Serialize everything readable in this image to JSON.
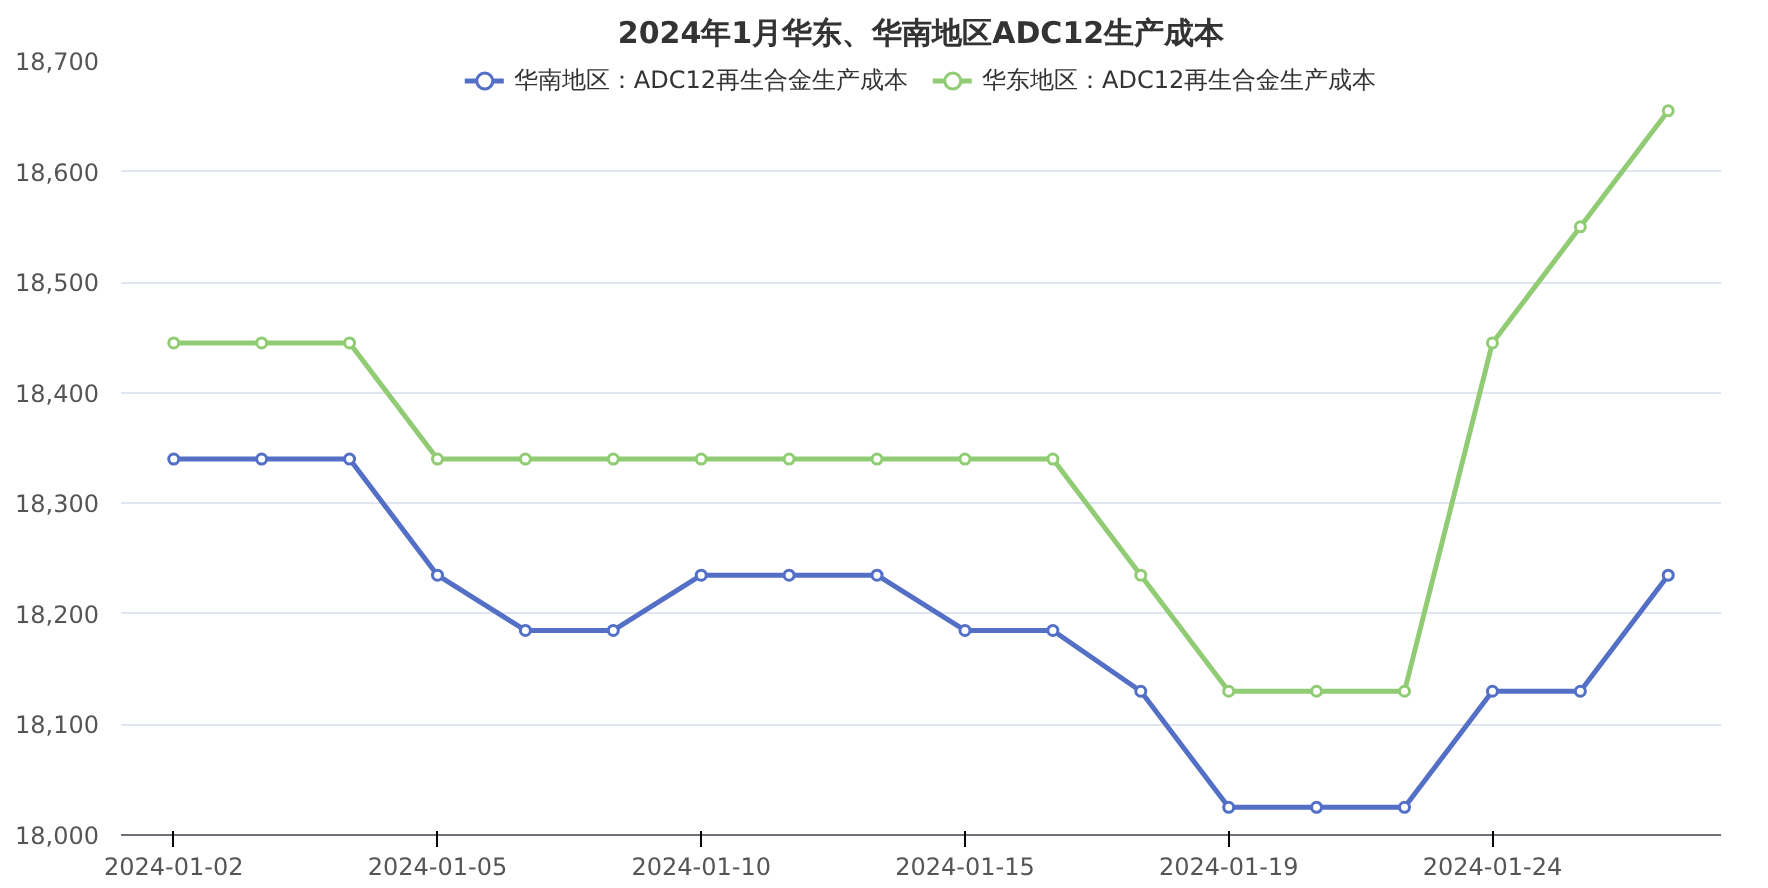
{
  "chart_data": {
    "type": "line",
    "title": "2024年1月华东、华南地区ADC12生产成本",
    "categories": [
      "2024-01-02",
      null,
      null,
      "2024-01-05",
      null,
      null,
      "2024-01-10",
      null,
      null,
      "2024-01-15",
      null,
      null,
      "2024-01-19",
      null,
      null,
      "2024-01-24",
      null,
      null
    ],
    "series": [
      {
        "name": "华南地区：ADC12再生合金生产成本",
        "color": "#5470c6",
        "values": [
          18340,
          18340,
          18340,
          18235,
          18185,
          18185,
          18235,
          18235,
          18235,
          18185,
          18185,
          18130,
          18025,
          18025,
          18025,
          18130,
          18130,
          18235
        ]
      },
      {
        "name": "华东地区：ADC12再生合金生产成本",
        "color": "#91cc75",
        "values": [
          18445,
          18445,
          18445,
          18340,
          18340,
          18340,
          18340,
          18340,
          18340,
          18340,
          18340,
          18235,
          18130,
          18130,
          18130,
          18445,
          18550,
          18655
        ]
      }
    ],
    "ylim": [
      18000,
      18700
    ],
    "yticks": [
      {
        "value": 18000,
        "label": "18,000"
      },
      {
        "value": 18100,
        "label": "18,100"
      },
      {
        "value": 18200,
        "label": "18,200"
      },
      {
        "value": 18300,
        "label": "18,300"
      },
      {
        "value": 18400,
        "label": "18,400"
      },
      {
        "value": 18500,
        "label": "18,500"
      },
      {
        "value": 18600,
        "label": "18,600"
      },
      {
        "value": 18700,
        "label": "18,700"
      }
    ],
    "grid": "y",
    "legend": "top",
    "marker": "circle",
    "line_style": "solid"
  }
}
